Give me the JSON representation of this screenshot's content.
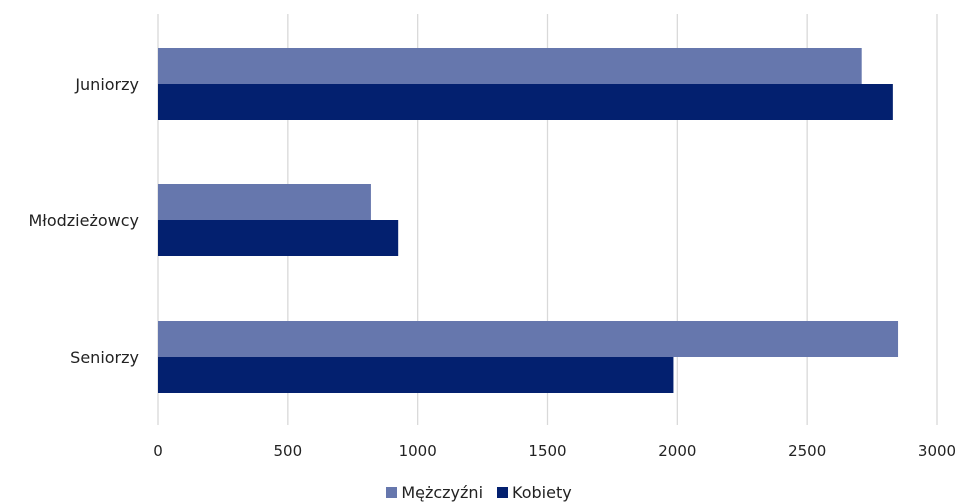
{
  "chart_data": {
    "type": "bar",
    "orientation": "horizontal",
    "categories": [
      "Juniorzy",
      "Młodzieżowcy",
      "Seniorzy"
    ],
    "series": [
      {
        "name": "Mężczyźni",
        "color": "#6677ad",
        "values": [
          2710,
          820,
          2850
        ]
      },
      {
        "name": "Kobiety",
        "color": "#03206f",
        "values": [
          2830,
          925,
          1985
        ]
      }
    ],
    "xlim": [
      0,
      3000
    ],
    "x_ticks": [
      "0",
      "500",
      "1000",
      "1500",
      "2000",
      "2500",
      "3000"
    ],
    "grid": true,
    "legend_position": "bottom"
  }
}
